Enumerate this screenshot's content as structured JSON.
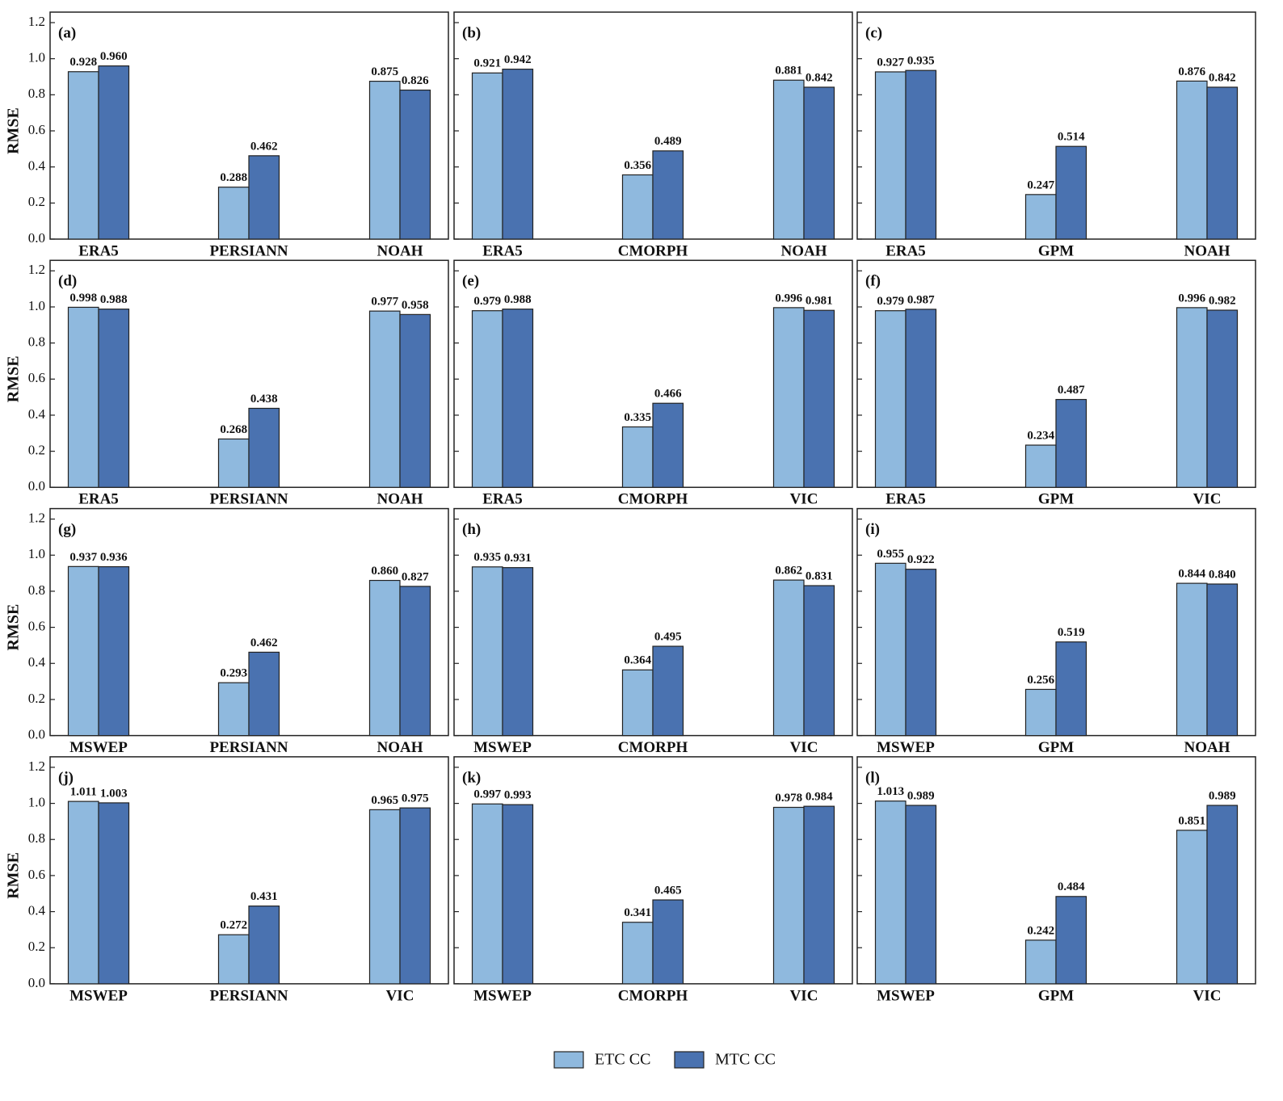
{
  "chart_data": [
    {
      "type": "bar",
      "panel": "(a)",
      "ylabel": "RMSE",
      "categories": [
        "ERA5",
        "PERSIANN",
        "NOAH"
      ],
      "series": [
        {
          "values": [
            0.928,
            0.288,
            0.875
          ],
          "value_labels": [
            "0.928",
            "0.288",
            "0.875"
          ]
        },
        {
          "values": [
            0.96,
            0.462,
            0.826
          ],
          "value_labels": [
            "0.960",
            "0.462",
            "0.826"
          ]
        }
      ],
      "ylim": [
        0,
        1.2
      ],
      "yticks": [
        {
          "value": 0,
          "label": "0.0"
        },
        0.2,
        0.4,
        0.6,
        0.8,
        {
          "value": 1,
          "label": "1.0"
        },
        1.2
      ]
    },
    {
      "type": "bar",
      "panel": "(b)",
      "categories": [
        "ERA5",
        "CMORPH",
        "NOAH"
      ],
      "series": [
        {
          "values": [
            0.921,
            0.356,
            0.881
          ],
          "value_labels": [
            "0.921",
            "0.356",
            "0.881"
          ]
        },
        {
          "values": [
            0.942,
            0.489,
            0.842
          ],
          "value_labels": [
            "0.942",
            "0.489",
            "0.842"
          ]
        }
      ],
      "ylim": [
        0,
        1.2
      ],
      "yticks": [
        {
          "value": 0,
          "label": "0.0"
        },
        0.2,
        0.4,
        0.6,
        0.8,
        {
          "value": 1,
          "label": "1.0"
        },
        1.2
      ]
    },
    {
      "type": "bar",
      "panel": "(c)",
      "categories": [
        "ERA5",
        "GPM",
        "NOAH"
      ],
      "series": [
        {
          "values": [
            0.927,
            0.247,
            0.876
          ],
          "value_labels": [
            "0.927",
            "0.247",
            "0.876"
          ]
        },
        {
          "values": [
            0.935,
            0.514,
            0.842
          ],
          "value_labels": [
            "0.935",
            "0.514",
            "0.842"
          ]
        }
      ],
      "ylim": [
        0,
        1.2
      ],
      "yticks": [
        {
          "value": 0,
          "label": "0.0"
        },
        0.2,
        0.4,
        0.6,
        0.8,
        {
          "value": 1,
          "label": "1.0"
        },
        1.2
      ]
    },
    {
      "type": "bar",
      "panel": "(d)",
      "ylabel": "RMSE",
      "categories": [
        "ERA5",
        "PERSIANN",
        "NOAH"
      ],
      "series": [
        {
          "values": [
            0.998,
            0.268,
            0.977
          ],
          "value_labels": [
            "0.998",
            "0.268",
            "0.977"
          ]
        },
        {
          "values": [
            0.988,
            0.438,
            0.958
          ],
          "value_labels": [
            "0.988",
            "0.438",
            "0.958"
          ]
        }
      ],
      "ylim": [
        0,
        1.2
      ],
      "yticks": [
        {
          "value": 0,
          "label": "0.0"
        },
        0.2,
        0.4,
        0.6,
        0.8,
        {
          "value": 1,
          "label": "1.0"
        },
        1.2
      ]
    },
    {
      "type": "bar",
      "panel": "(e)",
      "categories": [
        "ERA5",
        "CMORPH",
        "VIC"
      ],
      "series": [
        {
          "values": [
            0.979,
            0.335,
            0.996
          ],
          "value_labels": [
            "0.979",
            "0.335",
            "0.996"
          ]
        },
        {
          "values": [
            0.988,
            0.466,
            0.981
          ],
          "value_labels": [
            "0.988",
            "0.466",
            "0.981"
          ]
        }
      ],
      "ylim": [
        0,
        1.2
      ],
      "yticks": [
        {
          "value": 0,
          "label": "0.0"
        },
        0.2,
        0.4,
        0.6,
        0.8,
        {
          "value": 1,
          "label": "1.0"
        },
        1.2
      ]
    },
    {
      "type": "bar",
      "panel": "(f)",
      "categories": [
        "ERA5",
        "GPM",
        "VIC"
      ],
      "series": [
        {
          "values": [
            0.979,
            0.234,
            0.996
          ],
          "value_labels": [
            "0.979",
            "0.234",
            "0.996"
          ]
        },
        {
          "values": [
            0.987,
            0.487,
            0.982
          ],
          "value_labels": [
            "0.987",
            "0.487",
            "0.982"
          ]
        }
      ],
      "ylim": [
        0,
        1.2
      ],
      "yticks": [
        {
          "value": 0,
          "label": "0.0"
        },
        0.2,
        0.4,
        0.6,
        0.8,
        {
          "value": 1,
          "label": "1.0"
        },
        1.2
      ]
    },
    {
      "type": "bar",
      "panel": "(g)",
      "ylabel": "RMSE",
      "categories": [
        "MSWEP",
        "PERSIANN",
        "NOAH"
      ],
      "series": [
        {
          "values": [
            0.937,
            0.293,
            0.86
          ],
          "value_labels": [
            "0.937",
            "0.293",
            "0.860"
          ]
        },
        {
          "values": [
            0.936,
            0.462,
            0.827
          ],
          "value_labels": [
            "0.936",
            "0.462",
            "0.827"
          ]
        }
      ],
      "ylim": [
        0,
        1.2
      ],
      "yticks": [
        {
          "value": 0,
          "label": "0.0"
        },
        0.2,
        0.4,
        0.6,
        0.8,
        {
          "value": 1,
          "label": "1.0"
        },
        1.2
      ]
    },
    {
      "type": "bar",
      "panel": "(h)",
      "categories": [
        "MSWEP",
        "CMORPH",
        "VIC"
      ],
      "series": [
        {
          "values": [
            0.935,
            0.364,
            0.862
          ],
          "value_labels": [
            "0.935",
            "0.364",
            "0.862"
          ]
        },
        {
          "values": [
            0.931,
            0.495,
            0.831
          ],
          "value_labels": [
            "0.931",
            "0.495",
            "0.831"
          ]
        }
      ],
      "ylim": [
        0,
        1.2
      ],
      "yticks": [
        {
          "value": 0,
          "label": "0.0"
        },
        0.2,
        0.4,
        0.6,
        0.8,
        {
          "value": 1,
          "label": "1.0"
        },
        1.2
      ]
    },
    {
      "type": "bar",
      "panel": "(i)",
      "categories": [
        "MSWEP",
        "GPM",
        "NOAH"
      ],
      "series": [
        {
          "values": [
            0.955,
            0.256,
            0.844
          ],
          "value_labels": [
            "0.955",
            "0.256",
            "0.844"
          ]
        },
        {
          "values": [
            0.922,
            0.519,
            0.84
          ],
          "value_labels": [
            "0.922",
            "0.519",
            "0.840"
          ]
        }
      ],
      "ylim": [
        0,
        1.2
      ],
      "yticks": [
        {
          "value": 0,
          "label": "0.0"
        },
        0.2,
        0.4,
        0.6,
        0.8,
        {
          "value": 1,
          "label": "1.0"
        },
        1.2
      ]
    },
    {
      "type": "bar",
      "panel": "(j)",
      "ylabel": "RMSE",
      "categories": [
        "MSWEP",
        "PERSIANN",
        "VIC"
      ],
      "series": [
        {
          "values": [
            1.011,
            0.272,
            0.965
          ],
          "value_labels": [
            "1.011",
            "0.272",
            "0.965"
          ]
        },
        {
          "values": [
            1.003,
            0.431,
            0.975
          ],
          "value_labels": [
            "1.003",
            "0.431",
            "0.975"
          ]
        }
      ],
      "ylim": [
        0,
        1.2
      ],
      "yticks": [
        {
          "value": 0,
          "label": "0.0"
        },
        0.2,
        0.4,
        0.6,
        0.8,
        {
          "value": 1,
          "label": "1.0"
        },
        1.2
      ]
    },
    {
      "type": "bar",
      "panel": "(k)",
      "categories": [
        "MSWEP",
        "CMORPH",
        "VIC"
      ],
      "series": [
        {
          "values": [
            0.997,
            0.341,
            0.978
          ],
          "value_labels": [
            "0.997",
            "0.341",
            "0.978"
          ]
        },
        {
          "values": [
            0.993,
            0.465,
            0.984
          ],
          "value_labels": [
            "0.993",
            "0.465",
            "0.984"
          ]
        }
      ],
      "ylim": [
        0,
        1.2
      ],
      "yticks": [
        {
          "value": 0,
          "label": "0.0"
        },
        0.2,
        0.4,
        0.6,
        0.8,
        {
          "value": 1,
          "label": "1.0"
        },
        1.2
      ]
    },
    {
      "type": "bar",
      "panel": "(l)",
      "categories": [
        "MSWEP",
        "GPM",
        "VIC"
      ],
      "series": [
        {
          "values": [
            1.013,
            0.242,
            0.851
          ],
          "value_labels": [
            "1.013",
            "0.242",
            "0.851"
          ]
        },
        {
          "values": [
            0.989,
            0.484,
            0.989
          ],
          "value_labels": [
            "0.989",
            "0.484",
            "0.989"
          ]
        }
      ],
      "ylim": [
        0,
        1.2
      ],
      "yticks": [
        {
          "value": 0,
          "label": "0.0"
        },
        0.2,
        0.4,
        0.6,
        0.8,
        {
          "value": 1,
          "label": "1.0"
        },
        1.2
      ]
    }
  ],
  "legend": {
    "entries": [
      {
        "name": "ETC CC",
        "color": "#8fb9de"
      },
      {
        "name": "MTC CC",
        "color": "#4a72b0"
      }
    ]
  }
}
